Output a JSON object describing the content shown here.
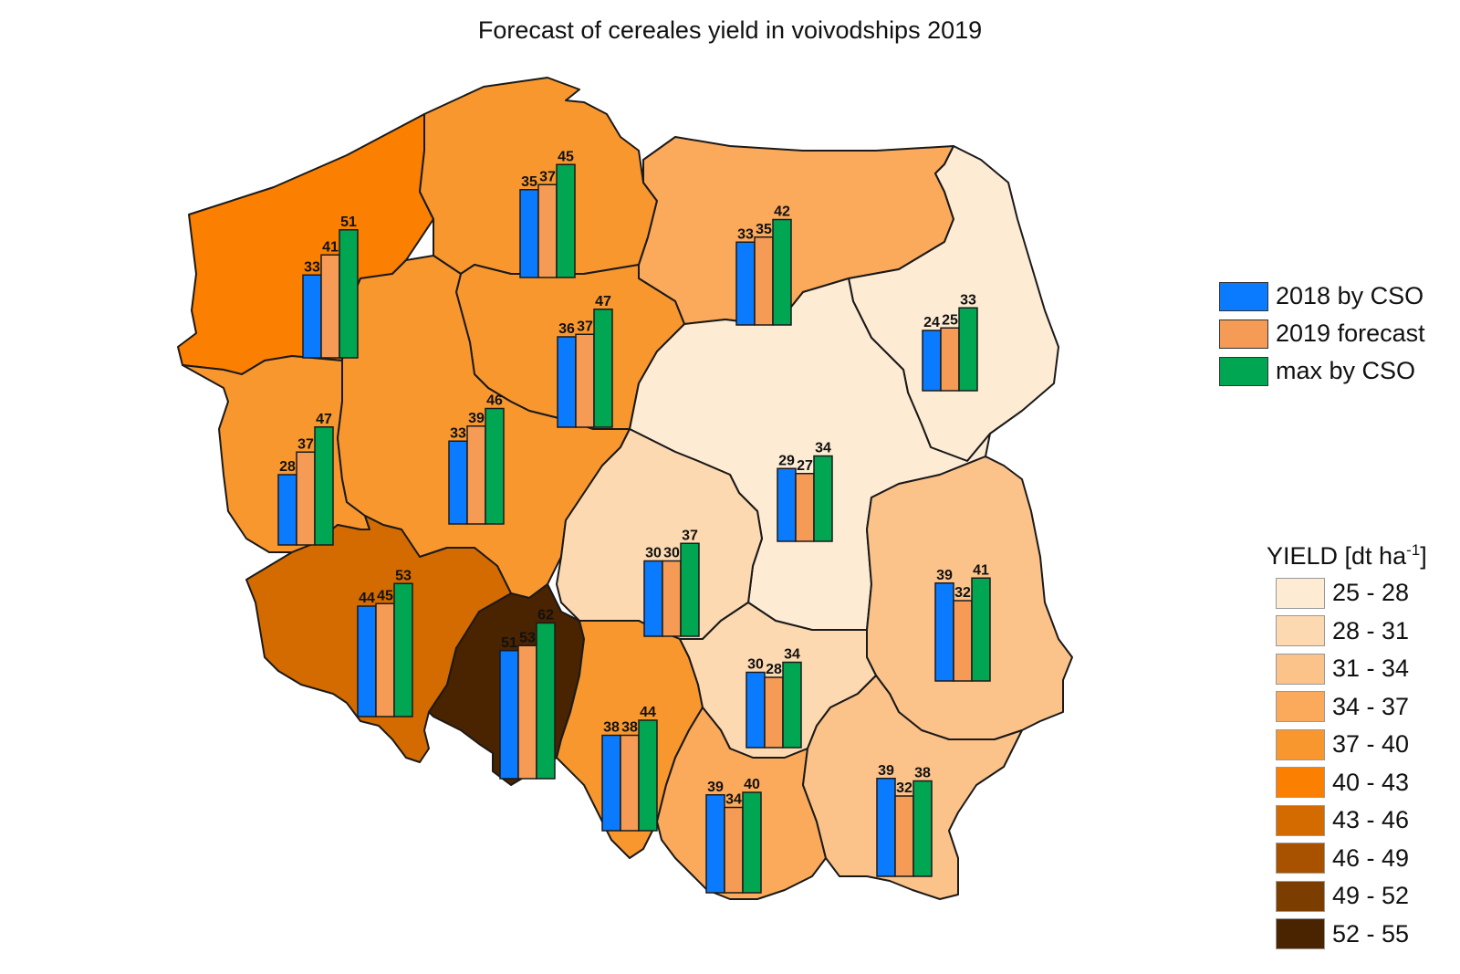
{
  "title": "Forecast of cereales yield in voivodships 2019",
  "series": [
    {
      "name": "2018 by CSO",
      "color": "#0a7bff"
    },
    {
      "name": "2019 forecast",
      "color": "#f59b55"
    },
    {
      "name": "max by CSO",
      "color": "#00a651"
    }
  ],
  "legend": {
    "title_main": "YIELD [dt ha",
    "title_sup": "-1",
    "title_end": "]",
    "classes": [
      {
        "label": "25 - 28",
        "color": "#fdebd4"
      },
      {
        "label": "28 - 31",
        "color": "#fcd9b1"
      },
      {
        "label": "31 - 34",
        "color": "#fbc28a"
      },
      {
        "label": "34 - 37",
        "color": "#fba95a"
      },
      {
        "label": "37 - 40",
        "color": "#f9972f"
      },
      {
        "label": "40 - 43",
        "color": "#fb7f00"
      },
      {
        "label": "43 - 46",
        "color": "#d36b00"
      },
      {
        "label": "46 - 49",
        "color": "#a85200"
      },
      {
        "label": "49 - 52",
        "color": "#7b3d00"
      },
      {
        "label": "52 - 55",
        "color": "#4a2300"
      }
    ]
  },
  "chart_data": {
    "type": "bar",
    "series_names": [
      "2018 by CSO",
      "2019 forecast",
      "max by CSO"
    ],
    "groups": [
      {
        "id": "west-pomeranian",
        "fill": "#fb7f00",
        "values": [
          33,
          41,
          51
        ]
      },
      {
        "id": "pomeranian",
        "fill": "#f9972f",
        "values": [
          35,
          37,
          45
        ]
      },
      {
        "id": "warmian-masurian",
        "fill": "#fba95a",
        "values": [
          33,
          35,
          42
        ]
      },
      {
        "id": "podlaskie",
        "fill": "#fdebd4",
        "values": [
          24,
          25,
          33
        ]
      },
      {
        "id": "kuyavian-pomeranian",
        "fill": "#f9972f",
        "values": [
          36,
          37,
          47
        ]
      },
      {
        "id": "lubusz",
        "fill": "#f9972f",
        "values": [
          28,
          37,
          47
        ]
      },
      {
        "id": "greater-poland",
        "fill": "#f9972f",
        "values": [
          33,
          39,
          46
        ]
      },
      {
        "id": "masovian",
        "fill": "#fdebd4",
        "values": [
          29,
          27,
          34
        ]
      },
      {
        "id": "lodz",
        "fill": "#fcd9b1",
        "values": [
          30,
          30,
          37
        ]
      },
      {
        "id": "lublin",
        "fill": "#fbc28a",
        "values": [
          39,
          32,
          41
        ]
      },
      {
        "id": "lower-silesian",
        "fill": "#d36b00",
        "values": [
          44,
          45,
          53
        ]
      },
      {
        "id": "opole",
        "fill": "#4a2300",
        "values": [
          51,
          53,
          62
        ]
      },
      {
        "id": "swietokrzyskie",
        "fill": "#fcd9b1",
        "values": [
          30,
          28,
          34
        ]
      },
      {
        "id": "silesian",
        "fill": "#f9972f",
        "values": [
          38,
          38,
          44
        ]
      },
      {
        "id": "lesser-poland",
        "fill": "#fba95a",
        "values": [
          39,
          34,
          40
        ]
      },
      {
        "id": "subcarpathian",
        "fill": "#fbc28a",
        "values": [
          39,
          32,
          38
        ]
      }
    ]
  }
}
